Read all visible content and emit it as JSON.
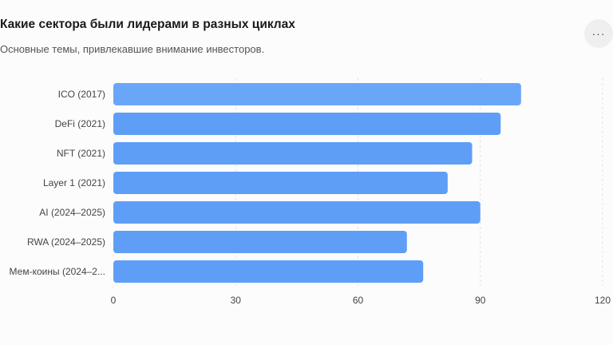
{
  "header": {
    "title": "Какие сектора были лидерами в разных циклах",
    "subtitle": "Основные темы, привлекавшие внимание инвесторов.",
    "more_icon": "ellipsis-icon"
  },
  "chart_data": {
    "type": "bar",
    "orientation": "horizontal",
    "title": "Какие сектора были лидерами в разных циклах",
    "subtitle": "Основные темы, привлекавшие внимание инвесторов.",
    "categories": [
      "ICO (2017)",
      "DeFi (2021)",
      "NFT (2021)",
      "Layer 1 (2021)",
      "AI (2024–2025)",
      "RWA (2024–2025)",
      "Мем-коины (2024–2..."
    ],
    "values": [
      100,
      95,
      88,
      82,
      90,
      72,
      76
    ],
    "xlim": [
      0,
      120
    ],
    "xticks": [
      0,
      30,
      60,
      90,
      120
    ],
    "grid": true,
    "bar_colors": [
      "#6aa6f8",
      "#5f9ef7",
      "#5f9ef7",
      "#5f9ef7",
      "#5f9ef7",
      "#5f9ef7",
      "#5f9ef7"
    ]
  }
}
